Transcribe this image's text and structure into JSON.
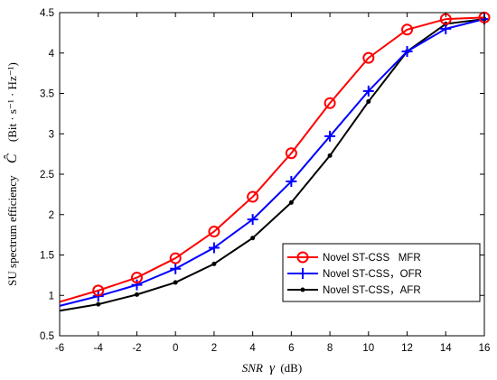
{
  "chart_data": {
    "type": "line",
    "title": "",
    "xlabel_italic": "SNR",
    "xlabel_gamma": "γ",
    "xlabel_unit": "(dB)",
    "ylabel_text": "SU spectrum efficiency",
    "ylabel_symbol": "Ĉ",
    "ylabel_unit": "(Bit · s⁻¹ · Hz⁻¹)",
    "xlim": [
      -6,
      16
    ],
    "ylim": [
      0.5,
      4.5
    ],
    "x_ticks": [
      -6,
      -4,
      -2,
      0,
      2,
      4,
      6,
      8,
      10,
      12,
      14,
      16
    ],
    "y_ticks": [
      0.5,
      1,
      1.5,
      2,
      2.5,
      3,
      3.5,
      4,
      4.5
    ],
    "x_tick_labels": [
      "-6",
      "-4",
      "-2",
      "0",
      "2",
      "4",
      "6",
      "8",
      "10",
      "12",
      "14",
      "16"
    ],
    "y_tick_labels": [
      "0.5",
      "1",
      "1.5",
      "2",
      "2.5",
      "3",
      "3.5",
      "4",
      "4.5"
    ],
    "grid": false,
    "legend_position": "lower-right",
    "x": [
      -6,
      -4,
      -2,
      0,
      2,
      4,
      6,
      8,
      10,
      12,
      14,
      16
    ],
    "series": [
      {
        "name": "Novel ST-CSS   MFR",
        "color": "#ff0000",
        "marker": "circle",
        "values": [
          0.92,
          1.06,
          1.22,
          1.46,
          1.79,
          2.22,
          2.76,
          3.38,
          3.94,
          4.29,
          4.42,
          4.44
        ]
      },
      {
        "name": "Novel ST-CSS，OFR",
        "color": "#0000ff",
        "marker": "plus",
        "values": [
          0.87,
          0.99,
          1.13,
          1.33,
          1.59,
          1.94,
          2.41,
          2.97,
          3.53,
          4.02,
          4.3,
          4.42
        ]
      },
      {
        "name": "Novel ST-CSS，AFR",
        "color": "#000000",
        "marker": "dot",
        "values": [
          0.81,
          0.89,
          1.01,
          1.16,
          1.39,
          1.71,
          2.15,
          2.73,
          3.4,
          4.02,
          4.36,
          4.42
        ]
      }
    ]
  }
}
